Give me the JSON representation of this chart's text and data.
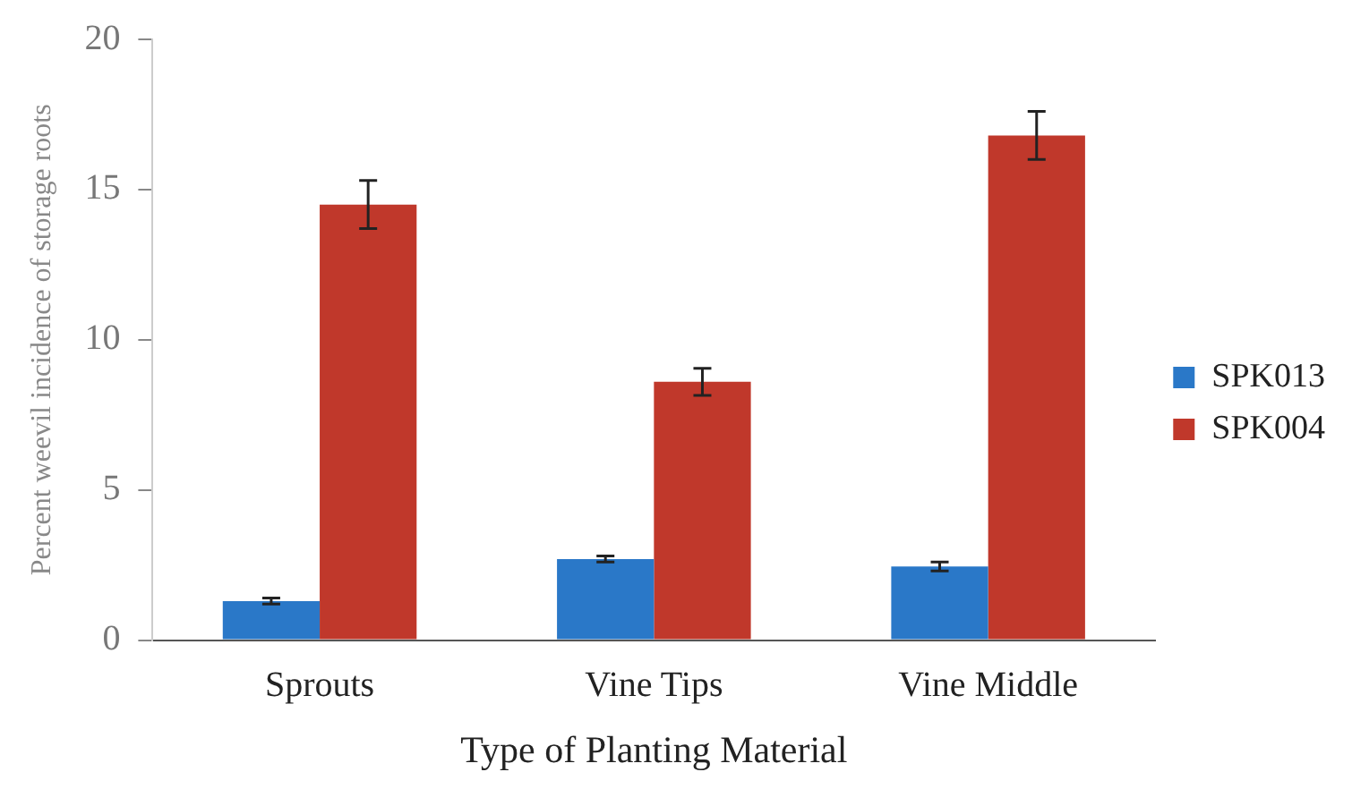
{
  "chart_data": {
    "type": "bar",
    "xlabel": "Type of Planting Material",
    "ylabel": "Percent weevil incidence of storage roots",
    "categories": [
      "Sprouts",
      "Vine Tips",
      "Vine Middle"
    ],
    "series": [
      {
        "name": "SPK013",
        "color": "#2a78c8",
        "values": [
          1.3,
          2.7,
          2.45
        ],
        "errors": [
          0.1,
          0.1,
          0.15
        ]
      },
      {
        "name": "SPK004",
        "color": "#c0382b",
        "values": [
          14.5,
          8.6,
          16.8
        ],
        "errors": [
          0.8,
          0.45,
          0.8
        ]
      }
    ],
    "ylim": [
      0,
      20
    ],
    "yticks": [
      0,
      5,
      10,
      15,
      20
    ],
    "grid": false,
    "legend": "right"
  }
}
